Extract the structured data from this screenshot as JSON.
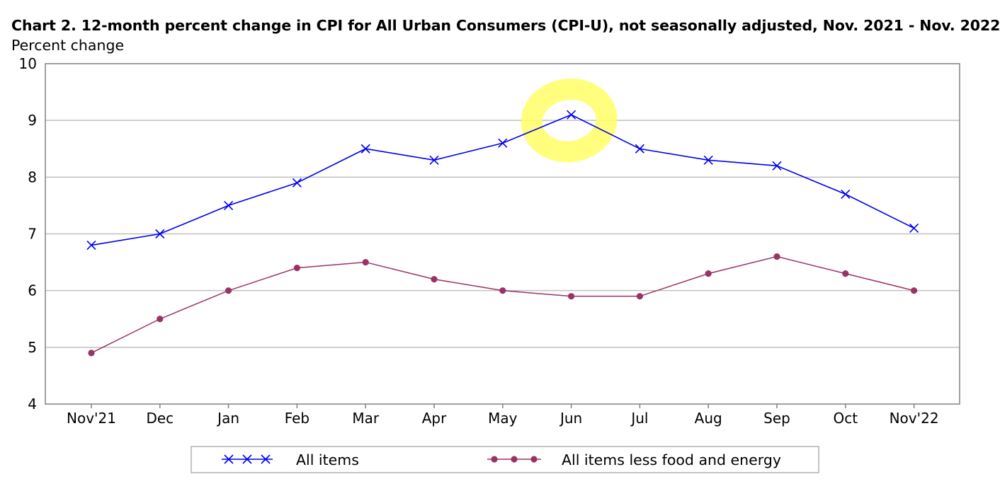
{
  "chart_data": {
    "type": "line",
    "title": "Chart 2. 12-month percent change in CPI for All Urban Consumers (CPI-U), not seasonally adjusted, Nov. 2021 - Nov. 2022",
    "ylabel": "Percent change",
    "xlabel": "",
    "categories": [
      "Nov'21",
      "Dec",
      "Jan",
      "Feb",
      "Mar",
      "Apr",
      "May",
      "Jun",
      "Jul",
      "Aug",
      "Sep",
      "Oct",
      "Nov'22"
    ],
    "ylim": [
      4,
      10
    ],
    "yticks": [
      "4",
      "5",
      "6",
      "7",
      "8",
      "9",
      "10"
    ],
    "grid": true,
    "legend_position": "bottom",
    "series": [
      {
        "name": "All items",
        "color": "#0000ee",
        "marker": "x",
        "values": [
          6.8,
          7.0,
          7.5,
          7.9,
          8.5,
          8.3,
          8.6,
          9.1,
          8.5,
          8.3,
          8.2,
          7.7,
          7.1
        ]
      },
      {
        "name": "All items less food and energy",
        "color": "#993366",
        "marker": "circle",
        "values": [
          4.9,
          5.5,
          6.0,
          6.4,
          6.5,
          6.2,
          6.0,
          5.9,
          5.9,
          6.3,
          6.6,
          6.3,
          6.0
        ]
      }
    ],
    "annotation": {
      "type": "highlight-circle",
      "color": "#ffff66",
      "category": "Jun",
      "series": "All items"
    }
  }
}
